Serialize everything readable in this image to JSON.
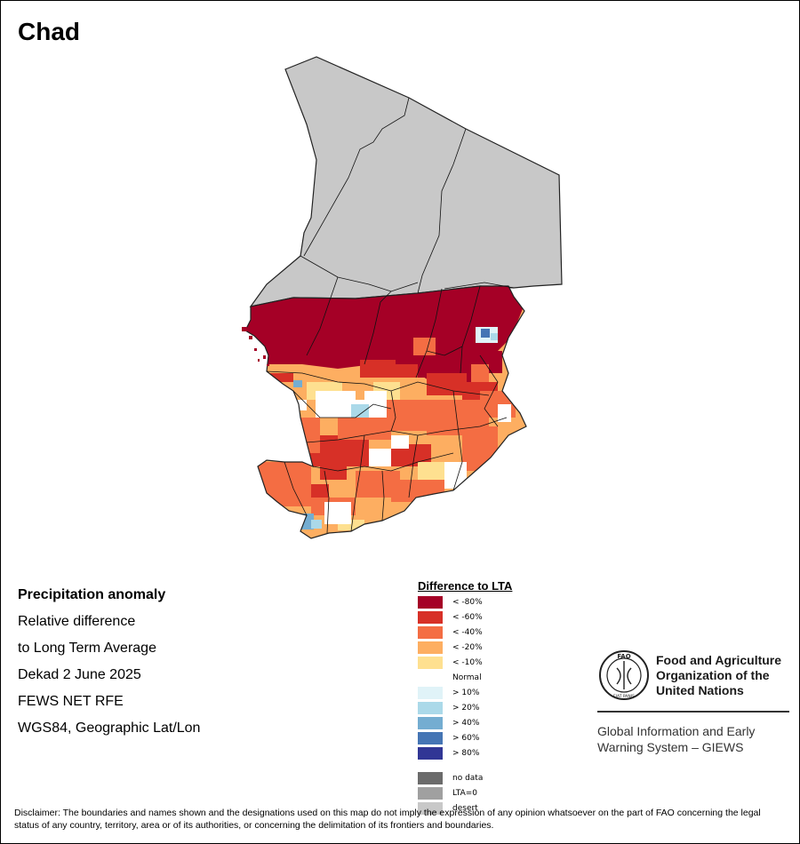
{
  "title": "Chad",
  "info": {
    "heading": "Precipitation anomaly",
    "line1": "Relative difference",
    "line2": "to Long Term Average",
    "period": "Dekad 2 June 2025",
    "source": "FEWS NET RFE",
    "projection": "WGS84, Geographic Lat/Lon"
  },
  "legend": {
    "title": "Difference to LTA",
    "items": [
      {
        "label": "< -80%",
        "color": "#a50026"
      },
      {
        "label": "< -60%",
        "color": "#d73027"
      },
      {
        "label": "< -40%",
        "color": "#f46d43"
      },
      {
        "label": "< -20%",
        "color": "#fdae61"
      },
      {
        "label": "< -10%",
        "color": "#fee090"
      },
      {
        "label": "Normal",
        "color": "#ffffff"
      },
      {
        "label": "> 10%",
        "color": "#e0f3f8"
      },
      {
        "label": "> 20%",
        "color": "#abd9e9"
      },
      {
        "label": "> 40%",
        "color": "#74add1"
      },
      {
        "label": "> 60%",
        "color": "#4575b4"
      },
      {
        "label": "> 80%",
        "color": "#313695"
      }
    ],
    "extra": [
      {
        "label": "no data",
        "color": "#6b6b6b"
      },
      {
        "label": "LTA=0",
        "color": "#a0a0a0"
      },
      {
        "label": "desert",
        "color": "#c8c8c8"
      }
    ]
  },
  "fao": {
    "org": [
      "Food and Agriculture",
      "Organization of the",
      "United Nations"
    ],
    "system": [
      "Global Information and Early",
      "Warning System – GIEWS"
    ],
    "logo_text": "FAO",
    "logo_motto": "FIAT PANIS"
  },
  "disclaimer": "Disclaimer: The boundaries and names shown and the designations used on this map do not imply the expression of any opinion whatsoever on the part of FAO concerning the legal status of any country, territory, area or of its authorities, or concerning the delimitation of its frontiers and boundaries."
}
